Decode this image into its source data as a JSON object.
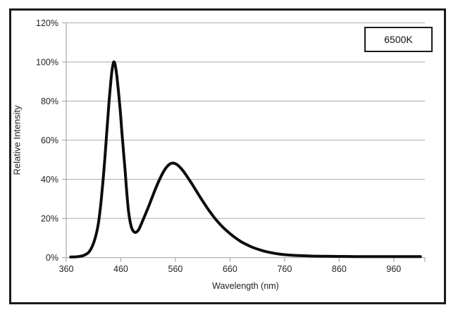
{
  "colors": {
    "background": "#ffffff",
    "frame": "#1a1a1a",
    "curve": "#0d0d0d",
    "grid": "#a9a9a9",
    "axis": "#a9a9a9",
    "tick": "#a9a9a9",
    "text": "#1f1f1f",
    "legend_border": "#1a1a1a",
    "legend_background": "#ffffff"
  },
  "chart_data": {
    "type": "line",
    "title": "",
    "xlabel": "Wavelength (nm)",
    "ylabel": "Relative Intensity",
    "legend": {
      "label": "6500K",
      "position": "top-right"
    },
    "xlim": [
      360,
      1017
    ],
    "ylim": [
      0,
      120
    ],
    "grid": "horizontal-only",
    "x_ticks": [
      360,
      460,
      560,
      660,
      760,
      860,
      960
    ],
    "x_tick_labels": [
      "360",
      "460",
      "560",
      "660",
      "760",
      "860",
      "960"
    ],
    "y_ticks": [
      0,
      20,
      40,
      60,
      80,
      100,
      120
    ],
    "y_tick_labels": [
      "0%",
      "20%",
      "40%",
      "60%",
      "80%",
      "100%",
      "120%"
    ],
    "series": [
      {
        "name": "6500K",
        "description": "Relative spectral intensity, blue LED peak at ~447 nm (100%) and phosphor hump at ~555 nm (~48%)",
        "x": [
          368,
          378,
          388,
          395,
          402,
          408,
          413,
          418,
          422,
          426,
          430,
          434,
          438,
          441,
          444,
          447,
          450,
          453,
          456,
          459,
          462,
          465,
          468,
          471,
          474,
          477,
          480,
          483,
          486,
          489,
          493,
          498,
          504,
          510,
          517,
          524,
          531,
          538,
          544,
          550,
          556,
          562,
          568,
          575,
          582,
          590,
          598,
          606,
          614,
          622,
          630,
          638,
          646,
          654,
          662,
          671,
          680,
          690,
          700,
          712,
          724,
          736,
          748,
          760,
          775,
          790,
          810,
          835,
          860,
          890,
          920,
          950,
          980,
          1009
        ],
        "y_percent": [
          0.3,
          0.4,
          0.8,
          1.5,
          3,
          6,
          10,
          16,
          24,
          35,
          48,
          63,
          78,
          88,
          96,
          100,
          98,
          92,
          84,
          75,
          64,
          54,
          44,
          33,
          24,
          18.5,
          15,
          13.5,
          12.9,
          13.1,
          14.4,
          17.5,
          21.5,
          25.5,
          30.5,
          35.5,
          40,
          43.8,
          46.3,
          47.9,
          48.3,
          47.7,
          46.3,
          44,
          41.2,
          37.8,
          34.2,
          30.6,
          27.2,
          23.9,
          20.9,
          18.2,
          15.8,
          13.7,
          11.8,
          9.9,
          8.2,
          6.7,
          5.4,
          4.2,
          3.2,
          2.5,
          1.9,
          1.5,
          1.2,
          1.0,
          0.8,
          0.7,
          0.6,
          0.55,
          0.5,
          0.5,
          0.5,
          0.5
        ]
      }
    ]
  }
}
